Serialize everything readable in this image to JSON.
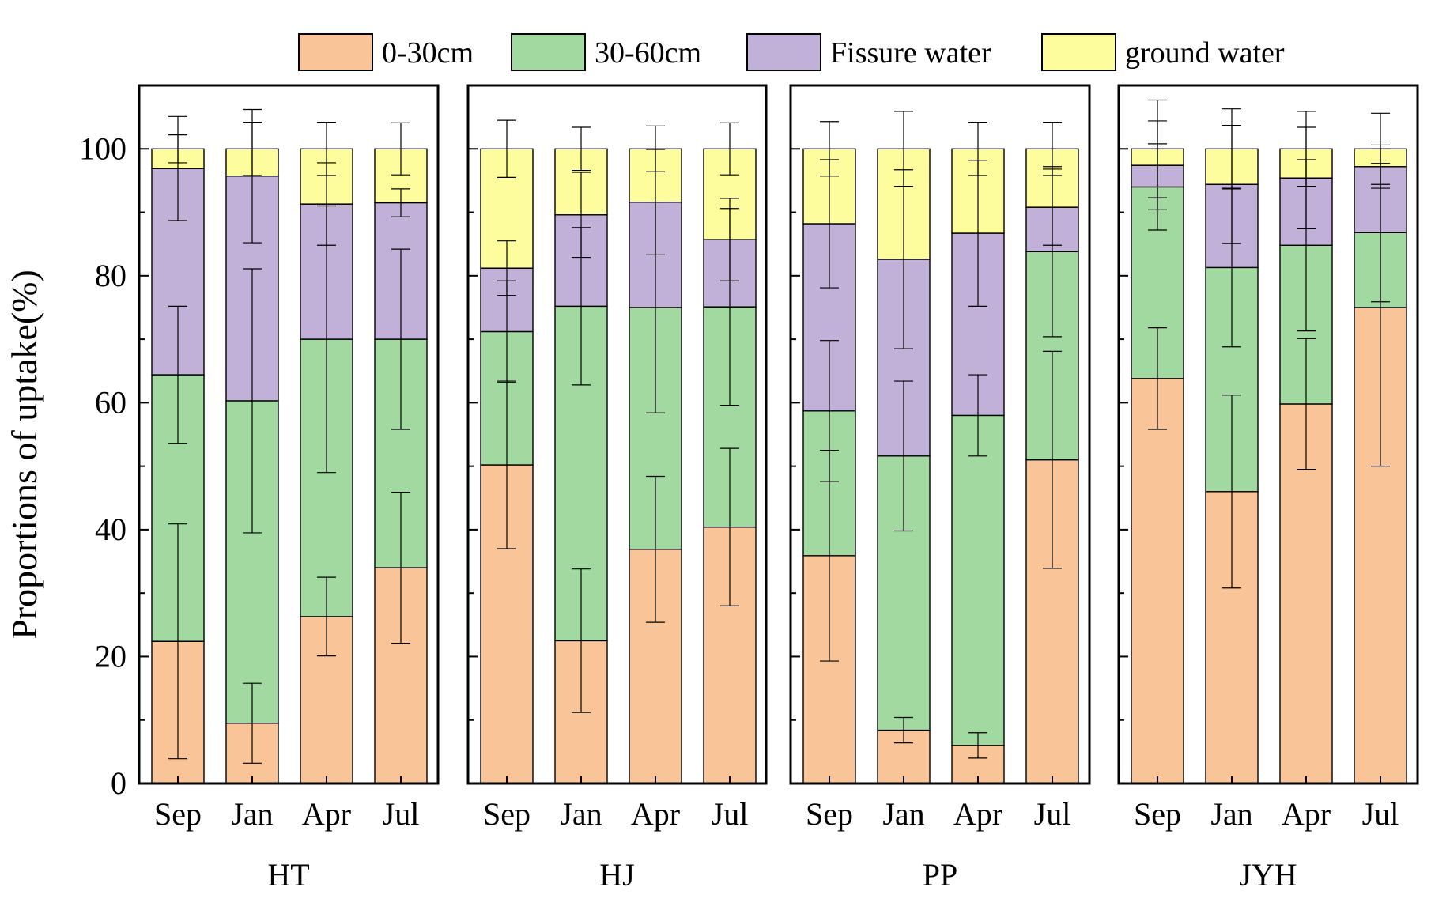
{
  "chart_data": {
    "type": "bar",
    "stacked": true,
    "ylabel": "Proportions of uptake(%)",
    "ylim": [
      0,
      110
    ],
    "yticks": [
      0,
      20,
      40,
      60,
      80,
      100
    ],
    "tick_labels": [
      "0",
      "20",
      "40",
      "60",
      "80",
      "100"
    ],
    "legend": {
      "placement": "top",
      "entries": [
        "0-30cm",
        "30-60cm",
        "Fissure water",
        "ground water"
      ]
    },
    "colors": [
      "#F9C598",
      "#A2D9A1",
      "#C1B1D8",
      "#FEFD9E"
    ],
    "series_names": [
      "0-30cm",
      "30-60cm",
      "Fissure water",
      "ground water"
    ],
    "groups": [
      {
        "name": "HT",
        "categories": [
          "Sep",
          "Jan",
          "Apr",
          "Jul"
        ],
        "values": [
          [
            22.4,
            42.0,
            32.5,
            3.1
          ],
          [
            9.5,
            50.8,
            35.4,
            4.3
          ],
          [
            26.3,
            43.7,
            21.3,
            8.7
          ],
          [
            34.0,
            36.0,
            21.5,
            8.5
          ]
        ],
        "errors": [
          [
            18.5,
            10.8,
            8.2,
            2.2
          ],
          [
            6.3,
            20.8,
            10.5,
            4.2
          ],
          [
            6.2,
            21.0,
            6.5,
            4.2
          ],
          [
            11.9,
            14.2,
            2.2,
            4.1
          ]
        ]
      },
      {
        "name": "HJ",
        "categories": [
          "Sep",
          "Jan",
          "Apr",
          "Jul"
        ],
        "values": [
          [
            50.2,
            21.0,
            10.0,
            18.8
          ],
          [
            22.5,
            52.7,
            14.4,
            10.4
          ],
          [
            36.9,
            38.1,
            16.6,
            8.4
          ],
          [
            40.4,
            34.7,
            10.6,
            14.3
          ]
        ],
        "errors": [
          [
            13.2,
            8.0,
            4.3,
            4.5
          ],
          [
            11.3,
            12.4,
            6.7,
            3.4
          ],
          [
            11.5,
            16.6,
            8.3,
            3.6
          ],
          [
            12.4,
            15.5,
            6.5,
            4.1
          ]
        ]
      },
      {
        "name": "PP",
        "categories": [
          "Sep",
          "Jan",
          "Apr",
          "Jul"
        ],
        "values": [
          [
            35.9,
            22.8,
            29.5,
            11.8
          ],
          [
            8.4,
            43.2,
            31.0,
            17.4
          ],
          [
            6.0,
            52.0,
            28.7,
            13.3
          ],
          [
            51.0,
            32.8,
            7.0,
            9.2
          ]
        ],
        "errors": [
          [
            16.6,
            11.1,
            10.1,
            4.3
          ],
          [
            2.0,
            11.8,
            14.1,
            5.9
          ],
          [
            2.0,
            6.4,
            11.5,
            4.2
          ],
          [
            17.1,
            13.4,
            6.0,
            4.2
          ]
        ]
      },
      {
        "name": "JYH",
        "categories": [
          "Sep",
          "Jan",
          "Apr",
          "Jul"
        ],
        "values": [
          [
            63.8,
            30.2,
            3.4,
            2.6
          ],
          [
            46.0,
            35.3,
            13.1,
            5.6
          ],
          [
            59.8,
            25.0,
            10.6,
            4.6
          ],
          [
            75.0,
            11.8,
            10.4,
            2.8
          ]
        ],
        "errors": [
          [
            8.0,
            6.8,
            7.0,
            7.7
          ],
          [
            15.2,
            12.5,
            9.3,
            6.3
          ],
          [
            10.3,
            13.5,
            8.0,
            5.9
          ],
          [
            25.0,
            10.9,
            3.4,
            5.6
          ]
        ]
      }
    ]
  }
}
